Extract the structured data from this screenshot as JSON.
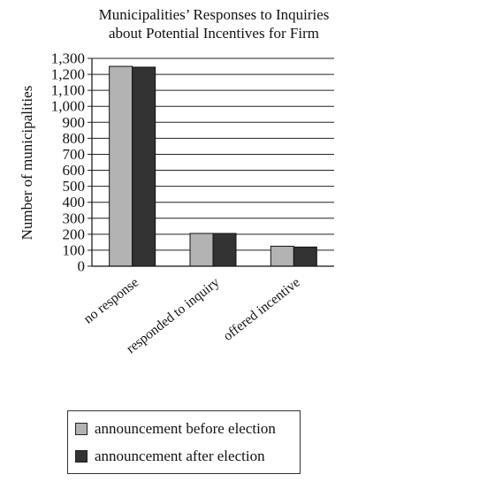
{
  "chart_data": {
    "type": "bar",
    "title_lines": [
      "Municipalities’ Responses to Inquiries",
      "about Potential Incentives for Firm"
    ],
    "xlabel": "",
    "ylabel": "Number of municipalities",
    "ylim": [
      0,
      1300
    ],
    "yticks": [
      0,
      100,
      200,
      300,
      400,
      500,
      600,
      700,
      800,
      900,
      1000,
      1100,
      1200,
      1300
    ],
    "ytick_labels": [
      "0",
      "100",
      "200",
      "300",
      "400",
      "500",
      "600",
      "700",
      "800",
      "900",
      "1,000",
      "1,100",
      "1,200",
      "1,300"
    ],
    "grid": true,
    "categories": [
      "no response",
      "responded to inquiry",
      "offered incentive"
    ],
    "series": [
      {
        "name": "announcement before election",
        "values": [
          1250,
          205,
          125
        ],
        "color": "#b3b3b3"
      },
      {
        "name": "announcement after election",
        "values": [
          1245,
          205,
          120
        ],
        "color": "#333333"
      }
    ],
    "legend_position": "bottom-left"
  }
}
